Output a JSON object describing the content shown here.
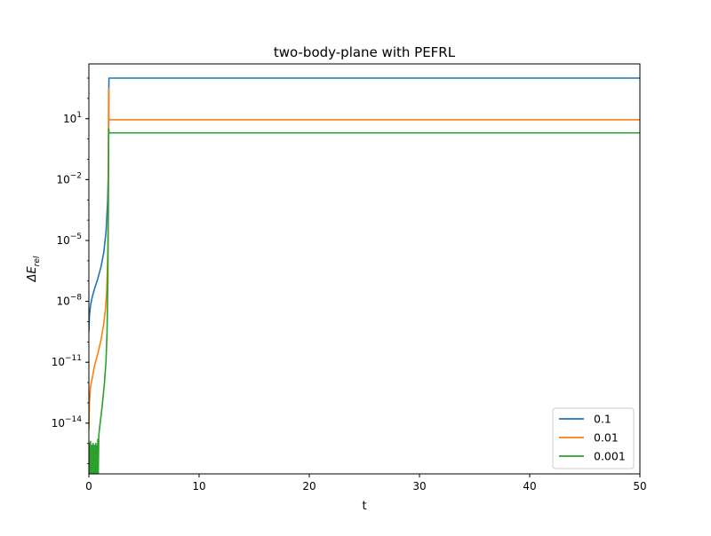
{
  "chart_data": {
    "type": "line",
    "title": "two-body-plane with PEFRL",
    "xlabel": "t",
    "ylabel": "ΔE",
    "ylabel_sub": "rel",
    "xlim": [
      0,
      50
    ],
    "ylim_exp": [
      -16.5,
      3.7
    ],
    "yscale": "log",
    "grid": false,
    "legend_position": "lower-right",
    "x_ticks": [
      {
        "value": 0,
        "label": "0"
      },
      {
        "value": 10,
        "label": "10"
      },
      {
        "value": 20,
        "label": "20"
      },
      {
        "value": 30,
        "label": "30"
      },
      {
        "value": 40,
        "label": "40"
      },
      {
        "value": 50,
        "label": "50"
      }
    ],
    "y_ticks": [
      {
        "exp": 1,
        "base": "10",
        "sup": "1"
      },
      {
        "exp": -2,
        "base": "10",
        "sup": "−2"
      },
      {
        "exp": -5,
        "base": "10",
        "sup": "−5"
      },
      {
        "exp": -8,
        "base": "10",
        "sup": "−8"
      },
      {
        "exp": -11,
        "base": "10",
        "sup": "−11"
      },
      {
        "exp": -14,
        "base": "10",
        "sup": "−14"
      }
    ],
    "series": [
      {
        "name": "0.1",
        "color": "#1f77b4",
        "points": [
          [
            0.0,
            -9.5
          ],
          [
            0.05,
            -8.7
          ],
          [
            0.15,
            -8.2
          ],
          [
            0.3,
            -7.8
          ],
          [
            0.5,
            -7.4
          ],
          [
            0.8,
            -6.9
          ],
          [
            1.1,
            -6.3
          ],
          [
            1.35,
            -5.6
          ],
          [
            1.55,
            -4.6
          ],
          [
            1.7,
            -3.1
          ],
          [
            1.78,
            -1.3
          ],
          [
            1.82,
            3.0
          ],
          [
            50,
            3.0
          ]
        ]
      },
      {
        "name": "0.01",
        "color": "#ff7f0e",
        "points": [
          [
            0.0,
            -14.3
          ],
          [
            0.05,
            -13.0
          ],
          [
            0.15,
            -12.2
          ],
          [
            0.3,
            -11.8
          ],
          [
            0.5,
            -11.2
          ],
          [
            0.8,
            -10.6
          ],
          [
            1.1,
            -9.9
          ],
          [
            1.35,
            -9.1
          ],
          [
            1.5,
            -8.4
          ],
          [
            1.62,
            -7.5
          ],
          [
            1.72,
            -5.5
          ],
          [
            1.76,
            -3.0
          ],
          [
            1.79,
            2.5
          ],
          [
            1.82,
            1.1
          ],
          [
            1.85,
            0.95
          ],
          [
            50,
            0.95
          ]
        ]
      },
      {
        "name": "0.001",
        "color": "#2ca02c",
        "points": [
          [
            0.0,
            -16.5
          ],
          [
            0.03,
            -15.0
          ],
          [
            0.06,
            -16.5
          ],
          [
            0.09,
            -15.3
          ],
          [
            0.12,
            -16.5
          ],
          [
            0.15,
            -14.9
          ],
          [
            0.18,
            -16.5
          ],
          [
            0.21,
            -15.2
          ],
          [
            0.24,
            -16.5
          ],
          [
            0.27,
            -15.1
          ],
          [
            0.3,
            -16.5
          ],
          [
            0.33,
            -15.3
          ],
          [
            0.36,
            -16.5
          ],
          [
            0.39,
            -15.0
          ],
          [
            0.42,
            -16.5
          ],
          [
            0.45,
            -15.2
          ],
          [
            0.48,
            -16.5
          ],
          [
            0.51,
            -15.1
          ],
          [
            0.54,
            -16.5
          ],
          [
            0.57,
            -15.3
          ],
          [
            0.6,
            -16.5
          ],
          [
            0.63,
            -15.0
          ],
          [
            0.66,
            -16.5
          ],
          [
            0.69,
            -15.2
          ],
          [
            0.72,
            -16.5
          ],
          [
            0.75,
            -15.1
          ],
          [
            0.78,
            -16.5
          ],
          [
            0.81,
            -14.8
          ],
          [
            0.85,
            -16.5
          ],
          [
            0.9,
            -14.6
          ],
          [
            1.0,
            -14.1
          ],
          [
            1.2,
            -13.2
          ],
          [
            1.4,
            -12.1
          ],
          [
            1.55,
            -11.0
          ],
          [
            1.65,
            -9.5
          ],
          [
            1.72,
            -7.0
          ],
          [
            1.77,
            -3.0
          ],
          [
            1.8,
            0.5
          ],
          [
            1.85,
            0.3
          ],
          [
            50,
            0.3
          ]
        ]
      }
    ],
    "legend": [
      {
        "label": "0.1",
        "color": "#1f77b4"
      },
      {
        "label": "0.01",
        "color": "#ff7f0e"
      },
      {
        "label": "0.001",
        "color": "#2ca02c"
      }
    ]
  }
}
